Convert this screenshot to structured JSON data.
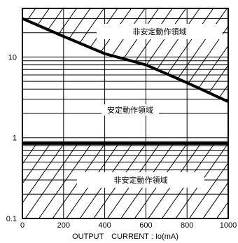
{
  "chart_data": {
    "type": "line",
    "title": "",
    "xlabel": "OUTPUT　CURRENT : Io(mA)",
    "ylabel": "",
    "xlim": [
      0,
      1000
    ],
    "ylim": [
      0.1,
      40
    ],
    "y_scale": "log",
    "grid": true,
    "x_ticks": [
      0,
      200,
      400,
      600,
      800,
      1000
    ],
    "x_tick_labels": [
      "0",
      "200",
      "400",
      "600",
      "800",
      "1000"
    ],
    "y_ticks": [
      0.1,
      1,
      10
    ],
    "y_tick_labels": [
      "0.1",
      "1",
      "10"
    ],
    "series": [
      {
        "name": "",
        "x": [
          0,
          200,
          400,
          600,
          800,
          1000
        ],
        "y": [
          30,
          18,
          11,
          8,
          4.8,
          2.8
        ]
      },
      {
        "name": "",
        "x": [
          0,
          1000
        ],
        "y": [
          0.85,
          0.85
        ]
      }
    ],
    "region_labels": {
      "upper": "非安定動作領域",
      "middle": "安定動作領域",
      "lower": "非安定動作領域"
    }
  }
}
